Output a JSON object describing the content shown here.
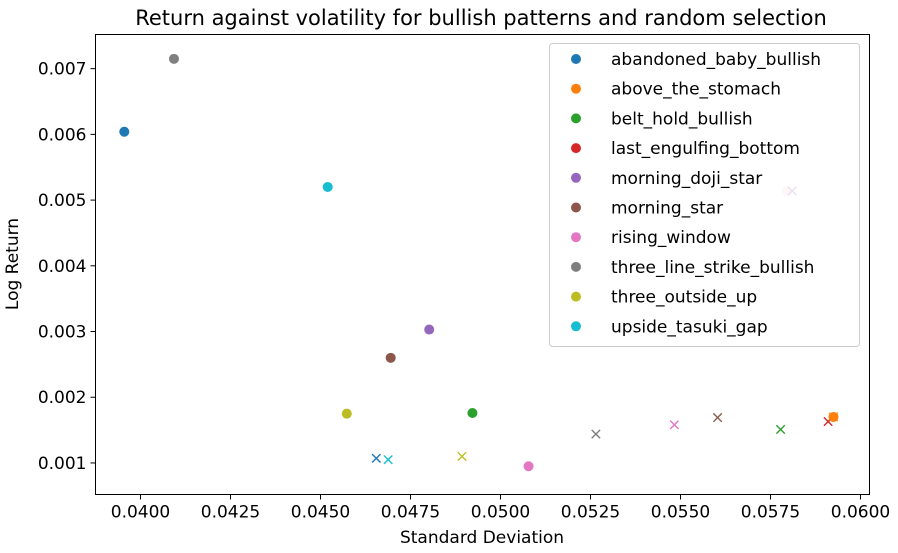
{
  "chart_data": {
    "type": "scatter",
    "title": "Return against volatility for bullish patterns and random selection",
    "xlabel": "Standard Deviation",
    "ylabel": "Log Return",
    "xlim": [
      0.03875,
      0.06025
    ],
    "ylim": [
      0.00052,
      0.00752
    ],
    "x_ticks": [
      "0.0400",
      "0.0425",
      "0.0450",
      "0.0475",
      "0.0500",
      "0.0525",
      "0.0550",
      "0.0575",
      "0.0600"
    ],
    "y_ticks": [
      "0.001",
      "0.002",
      "0.003",
      "0.004",
      "0.005",
      "0.006",
      "0.007"
    ],
    "grid": false,
    "legend_position": "top-right",
    "series": [
      {
        "name": "abandoned_baby_bullish",
        "color": "#1f77b4",
        "pattern": {
          "x": 0.03955,
          "y": 0.00604
        },
        "random": {
          "x": 0.04655,
          "y": 0.00107
        }
      },
      {
        "name": "above_the_stomach",
        "color": "#ff7f0e",
        "pattern": {
          "x": 0.05925,
          "y": 0.0017
        },
        "random": {
          "x": 0.05925,
          "y": 0.0017
        }
      },
      {
        "name": "belt_hold_bullish",
        "color": "#2ca02c",
        "pattern": {
          "x": 0.04922,
          "y": 0.00176
        },
        "random": {
          "x": 0.05778,
          "y": 0.00151
        }
      },
      {
        "name": "last_engulfing_bottom",
        "color": "#d62728",
        "pattern": {
          "x": 0.05795,
          "y": 0.00514
        },
        "random": {
          "x": 0.0591,
          "y": 0.00163
        }
      },
      {
        "name": "morning_doji_star",
        "color": "#9467bd",
        "pattern": {
          "x": 0.04802,
          "y": 0.00303
        },
        "random": {
          "x": 0.0581,
          "y": 0.00514
        }
      },
      {
        "name": "morning_star",
        "color": "#8c564b",
        "pattern": {
          "x": 0.04695,
          "y": 0.0026
        },
        "random": {
          "x": 0.05603,
          "y": 0.00169
        }
      },
      {
        "name": "rising_window",
        "color": "#e377c2",
        "pattern": {
          "x": 0.05078,
          "y": 0.00095
        },
        "random": {
          "x": 0.05483,
          "y": 0.00158
        }
      },
      {
        "name": "three_line_strike_bullish",
        "color": "#7f7f7f",
        "pattern": {
          "x": 0.04093,
          "y": 0.00715
        },
        "random": {
          "x": 0.05265,
          "y": 0.00144
        }
      },
      {
        "name": "three_outside_up",
        "color": "#bcbd22",
        "pattern": {
          "x": 0.04573,
          "y": 0.00175
        },
        "random": {
          "x": 0.04893,
          "y": 0.0011
        }
      },
      {
        "name": "upside_tasuki_gap",
        "color": "#17becf",
        "pattern": {
          "x": 0.0452,
          "y": 0.0052
        },
        "random": {
          "x": 0.04688,
          "y": 0.00105
        }
      }
    ]
  }
}
